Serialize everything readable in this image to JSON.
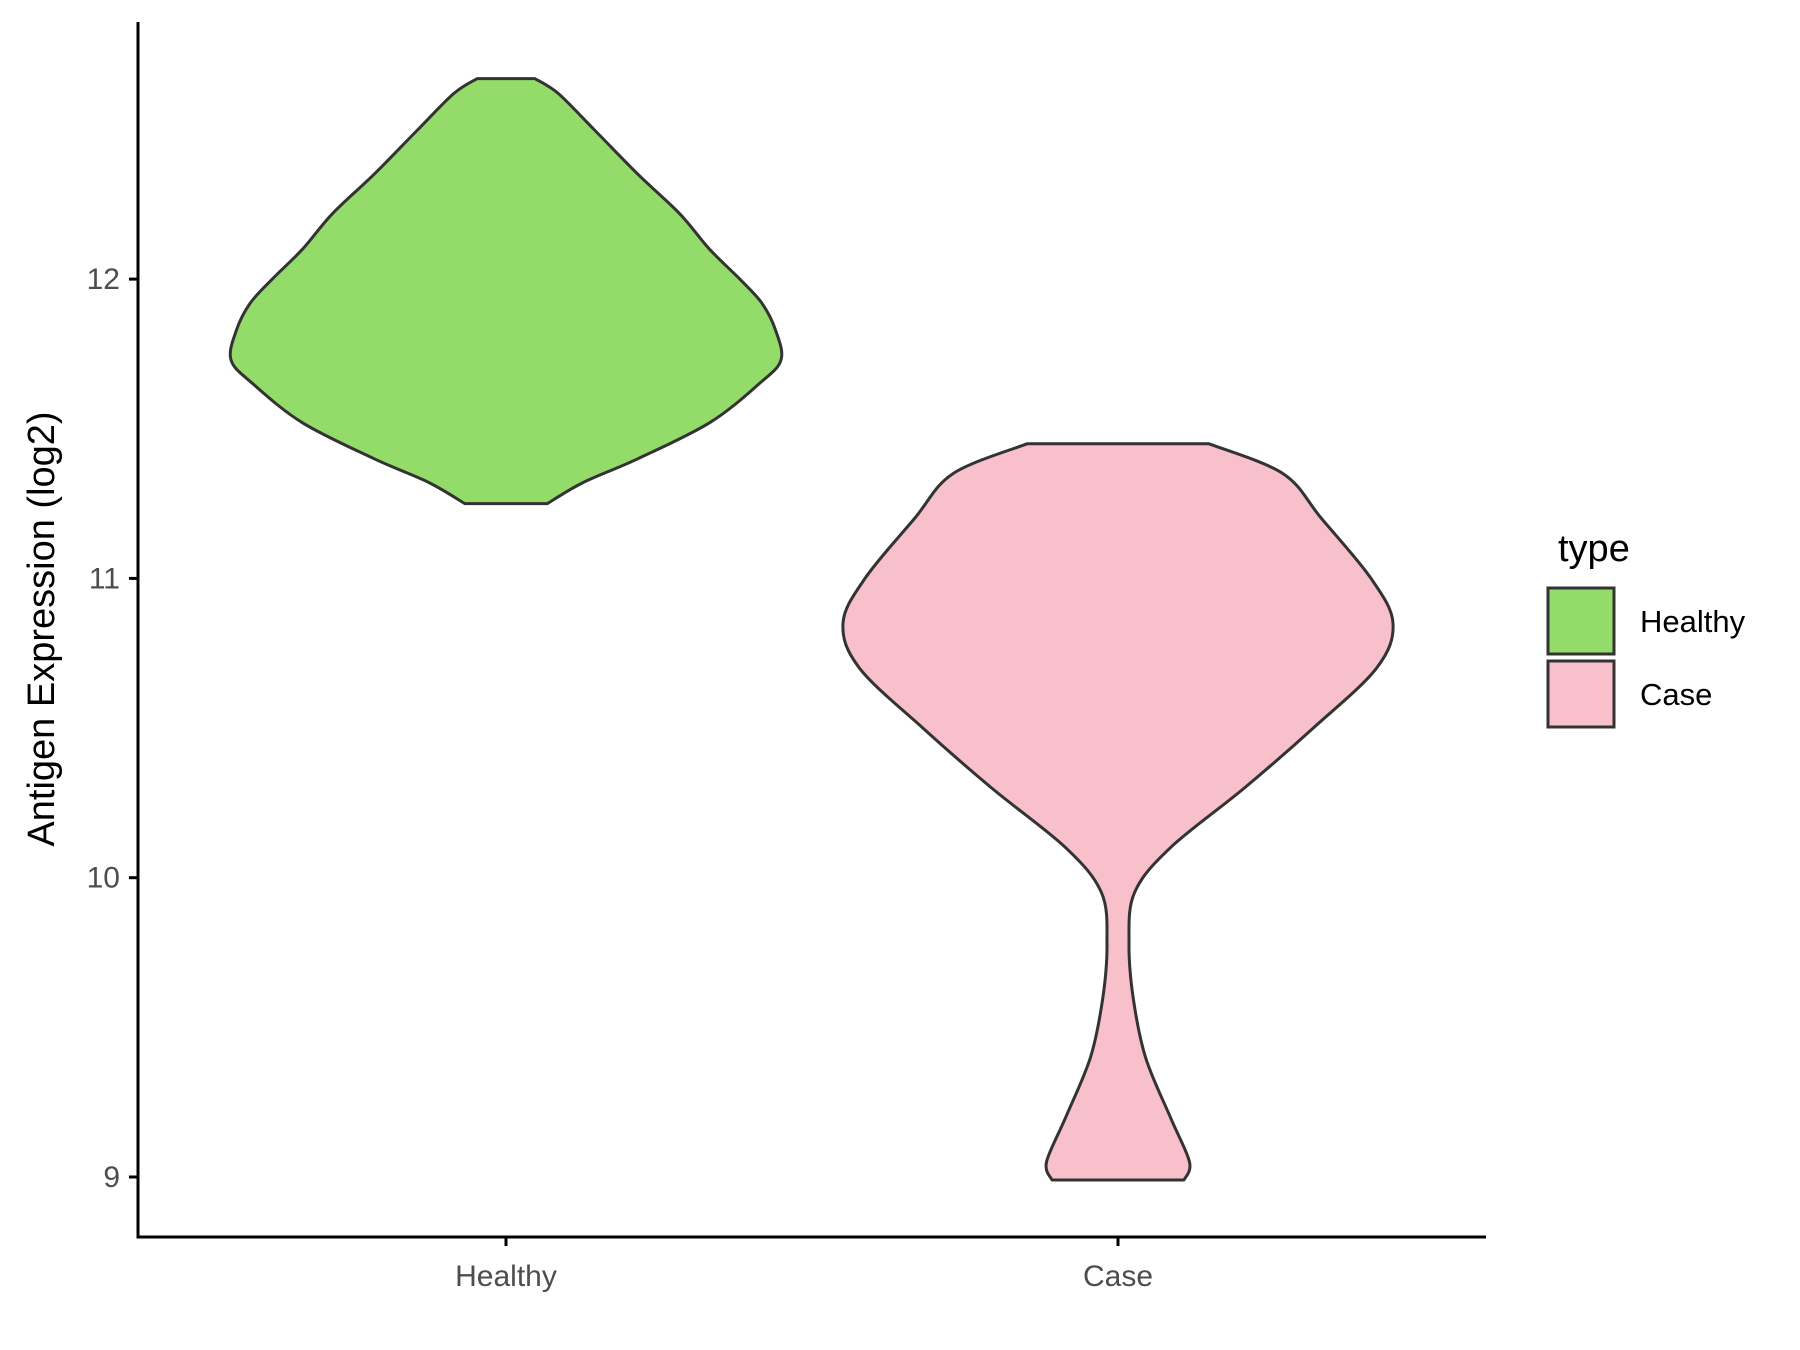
{
  "chart_data": {
    "type": "violin",
    "title": "",
    "xlabel": "",
    "ylabel": "Antigen Expression (log2)",
    "ylim": [
      8.8,
      12.85
    ],
    "yticks": [
      9,
      10,
      11,
      12
    ],
    "ytick_labels": [
      "9",
      "10",
      "11",
      "12"
    ],
    "categories": [
      "Healthy",
      "Case"
    ],
    "grid": false,
    "legend": {
      "title": "type",
      "placement": "right",
      "entries": [
        {
          "label": "Healthy",
          "color": "#94dc6a"
        },
        {
          "label": "Case",
          "color": "#f8c0cb"
        }
      ]
    },
    "series": [
      {
        "name": "Healthy",
        "color": "#94dc6a",
        "min": 11.25,
        "max": 12.67,
        "profile": [
          {
            "y": 11.25,
            "w": 0.15
          },
          {
            "y": 11.32,
            "w": 0.28
          },
          {
            "y": 11.4,
            "w": 0.48
          },
          {
            "y": 11.52,
            "w": 0.74
          },
          {
            "y": 11.65,
            "w": 0.92
          },
          {
            "y": 11.73,
            "w": 1.0
          },
          {
            "y": 11.83,
            "w": 0.98
          },
          {
            "y": 11.92,
            "w": 0.93
          },
          {
            "y": 12.0,
            "w": 0.85
          },
          {
            "y": 12.1,
            "w": 0.74
          },
          {
            "y": 12.22,
            "w": 0.63
          },
          {
            "y": 12.35,
            "w": 0.48
          },
          {
            "y": 12.5,
            "w": 0.32
          },
          {
            "y": 12.62,
            "w": 0.19
          },
          {
            "y": 12.67,
            "w": 0.105
          }
        ]
      },
      {
        "name": "Case",
        "color": "#f8c0cb",
        "min": 8.99,
        "max": 11.45,
        "profile": [
          {
            "y": 8.99,
            "w": 0.24
          },
          {
            "y": 9.05,
            "w": 0.26
          },
          {
            "y": 9.2,
            "w": 0.19
          },
          {
            "y": 9.4,
            "w": 0.1
          },
          {
            "y": 9.6,
            "w": 0.055
          },
          {
            "y": 9.78,
            "w": 0.04
          },
          {
            "y": 9.95,
            "w": 0.06
          },
          {
            "y": 10.1,
            "w": 0.19
          },
          {
            "y": 10.3,
            "w": 0.46
          },
          {
            "y": 10.5,
            "w": 0.71
          },
          {
            "y": 10.7,
            "w": 0.94
          },
          {
            "y": 10.85,
            "w": 1.0
          },
          {
            "y": 11.0,
            "w": 0.92
          },
          {
            "y": 11.2,
            "w": 0.74
          },
          {
            "y": 11.35,
            "w": 0.6
          },
          {
            "y": 11.45,
            "w": 0.33
          }
        ]
      }
    ]
  }
}
